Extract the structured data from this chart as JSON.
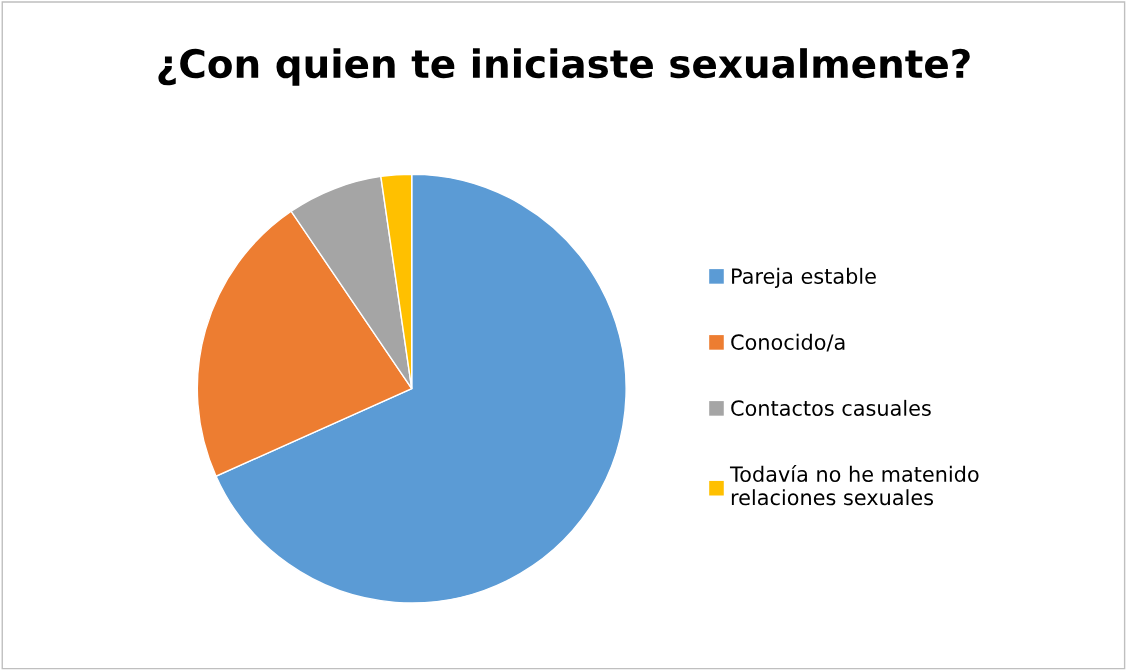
{
  "chart_data": {
    "type": "pie",
    "title": "¿Con quien te iniciaste sexualmente?",
    "categories": [
      "Pareja estable",
      "Conocido/a",
      "Contactos casuales",
      "Todavía no he matenido relaciones sexuales"
    ],
    "values": [
      68.3,
      22.2,
      7.2,
      2.3
    ],
    "colors": [
      "#5b9bd5",
      "#ed7d31",
      "#a5a5a5",
      "#ffc000"
    ],
    "legend": "right"
  }
}
